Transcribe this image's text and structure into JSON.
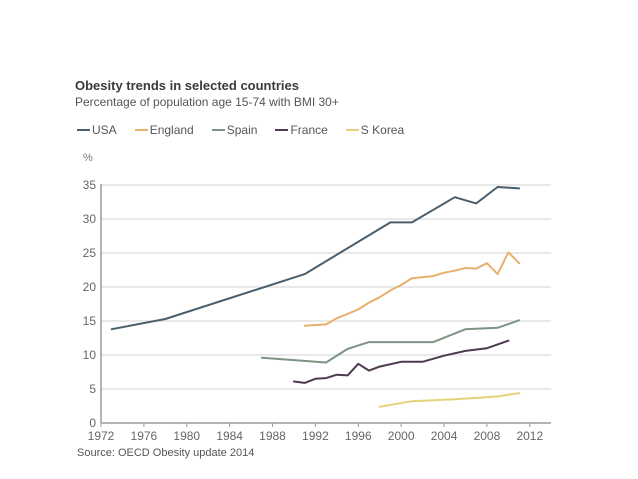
{
  "chart_data": {
    "type": "line",
    "title": "Obesity trends in selected countries",
    "subtitle": "Percentage of population age 15-74 with BMI 30+",
    "ylabel": "%",
    "xlabel": "",
    "source": "Source: OECD Obesity update 2014",
    "xlim": [
      1972,
      2014
    ],
    "ylim": [
      0,
      35
    ],
    "xticks": [
      1972,
      1976,
      1980,
      1984,
      1988,
      1992,
      1996,
      2000,
      2004,
      2008,
      2012
    ],
    "yticks": [
      0,
      5,
      10,
      15,
      20,
      25,
      30,
      35
    ],
    "grid": true,
    "legend_position": "top",
    "series": [
      {
        "name": "USA",
        "color": "#4a5f6e",
        "points": [
          [
            1973,
            13.8
          ],
          [
            1978,
            15.3
          ],
          [
            1991,
            21.9
          ],
          [
            1999,
            29.5
          ],
          [
            2001,
            29.5
          ],
          [
            2005,
            33.2
          ],
          [
            2007,
            32.3
          ],
          [
            2009,
            34.7
          ],
          [
            2011,
            34.5
          ]
        ]
      },
      {
        "name": "England",
        "color": "#e8b06a",
        "points": [
          [
            1991,
            14.3
          ],
          [
            1993,
            14.5
          ],
          [
            1994,
            15.4
          ],
          [
            1996,
            16.7
          ],
          [
            1997,
            17.7
          ],
          [
            1998,
            18.5
          ],
          [
            1999,
            19.5
          ],
          [
            2000,
            20.3
          ],
          [
            2001,
            21.3
          ],
          [
            2003,
            21.6
          ],
          [
            2004,
            22.1
          ],
          [
            2005,
            22.4
          ],
          [
            2006,
            22.8
          ],
          [
            2007,
            22.7
          ],
          [
            2008,
            23.5
          ],
          [
            2009,
            21.9
          ],
          [
            2010,
            25.1
          ],
          [
            2011,
            23.5
          ]
        ]
      },
      {
        "name": "Spain",
        "color": "#7d9484",
        "points": [
          [
            1987,
            9.6
          ],
          [
            1993,
            8.9
          ],
          [
            1995,
            10.9
          ],
          [
            1997,
            11.9
          ],
          [
            2003,
            11.9
          ],
          [
            2006,
            13.8
          ],
          [
            2009,
            14.0
          ],
          [
            2011,
            15.1
          ]
        ]
      },
      {
        "name": "France",
        "color": "#4d3a4f",
        "points": [
          [
            1990,
            6.1
          ],
          [
            1991,
            5.9
          ],
          [
            1992,
            6.5
          ],
          [
            1993,
            6.6
          ],
          [
            1994,
            7.1
          ],
          [
            1995,
            7.0
          ],
          [
            1996,
            8.7
          ],
          [
            1997,
            7.7
          ],
          [
            1998,
            8.3
          ],
          [
            2000,
            9.0
          ],
          [
            2002,
            9.0
          ],
          [
            2004,
            9.9
          ],
          [
            2006,
            10.6
          ],
          [
            2008,
            11.0
          ],
          [
            2010,
            12.1
          ]
        ]
      },
      {
        "name": "S Korea",
        "color": "#e6d27a",
        "points": [
          [
            1998,
            2.4
          ],
          [
            2001,
            3.2
          ],
          [
            2005,
            3.5
          ],
          [
            2009,
            3.9
          ],
          [
            2011,
            4.4
          ]
        ]
      }
    ]
  }
}
